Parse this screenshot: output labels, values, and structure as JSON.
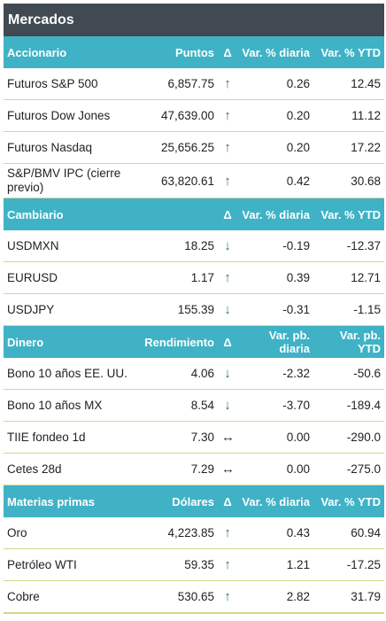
{
  "title": "Mercados",
  "sections": [
    {
      "header": {
        "label": "Accionario",
        "col1": "Puntos",
        "delta": "Δ",
        "col2": "Var. % diaria",
        "col3": "Var. % YTD"
      },
      "rows": [
        {
          "name": "Futuros S&P 500",
          "value": "6,857.75",
          "dir": "up",
          "arrow": "↑",
          "daily": "0.26",
          "ytd": "12.45"
        },
        {
          "name": "Futuros Dow Jones",
          "value": "47,639.00",
          "dir": "up",
          "arrow": "↑",
          "daily": "0.20",
          "ytd": "11.12"
        },
        {
          "name": "Futuros Nasdaq",
          "value": "25,656.25",
          "dir": "up",
          "arrow": "↑",
          "daily": "0.20",
          "ytd": "17.22"
        },
        {
          "name": "S&P/BMV IPC (cierre previo)",
          "value": "63,820.61",
          "dir": "up",
          "arrow": "↑",
          "daily": "0.42",
          "ytd": "30.68"
        }
      ]
    },
    {
      "header": {
        "label": "Cambiario",
        "col1": "",
        "delta": "Δ",
        "col2": "Var. % diaria",
        "col3": "Var. % YTD"
      },
      "rows": [
        {
          "name": "USDMXN",
          "value": "18.25",
          "dir": "down",
          "arrow": "↓",
          "daily": "-0.19",
          "ytd": "-12.37"
        },
        {
          "name": "EURUSD",
          "value": "1.17",
          "dir": "up",
          "arrow": "↑",
          "daily": "0.39",
          "ytd": "12.71"
        },
        {
          "name": "USDJPY",
          "value": "155.39",
          "dir": "down",
          "arrow": "↓",
          "daily": "-0.31",
          "ytd": "-1.15"
        }
      ]
    },
    {
      "header": {
        "label": "Dinero",
        "col1": "Rendimiento",
        "delta": "Δ",
        "col2": "Var. pb. diaria",
        "col3": "Var. pb. YTD"
      },
      "rows": [
        {
          "name": "Bono 10 años EE. UU.",
          "value": "4.06",
          "dir": "down",
          "arrow": "↓",
          "daily": "-2.32",
          "ytd": "-50.6"
        },
        {
          "name": "Bono 10 años MX",
          "value": "8.54",
          "dir": "down",
          "arrow": "↓",
          "daily": "-3.70",
          "ytd": "-189.4"
        },
        {
          "name": "TIIE fondeo 1d",
          "value": "7.30",
          "dir": "side",
          "arrow": "↔",
          "daily": "0.00",
          "ytd": "-290.0"
        },
        {
          "name": "Cetes 28d",
          "value": "7.29",
          "dir": "side",
          "arrow": "↔",
          "daily": "0.00",
          "ytd": "-275.0"
        }
      ]
    },
    {
      "header": {
        "label": "Materias primas",
        "col1": "Dólares",
        "delta": "Δ",
        "col2": "Var. % diaria",
        "col3": "Var. % YTD"
      },
      "rows": [
        {
          "name": "Oro",
          "value": "4,223.85",
          "dir": "up",
          "arrow": "↑",
          "daily": "0.43",
          "ytd": "60.94"
        },
        {
          "name": "Petróleo WTI",
          "value": "59.35",
          "dir": "up",
          "arrow": "↑",
          "daily": "1.21",
          "ytd": "-17.25"
        },
        {
          "name": "Cobre",
          "value": "530.65",
          "dir": "up",
          "arrow": "↑",
          "daily": "2.82",
          "ytd": "31.79"
        }
      ]
    }
  ]
}
